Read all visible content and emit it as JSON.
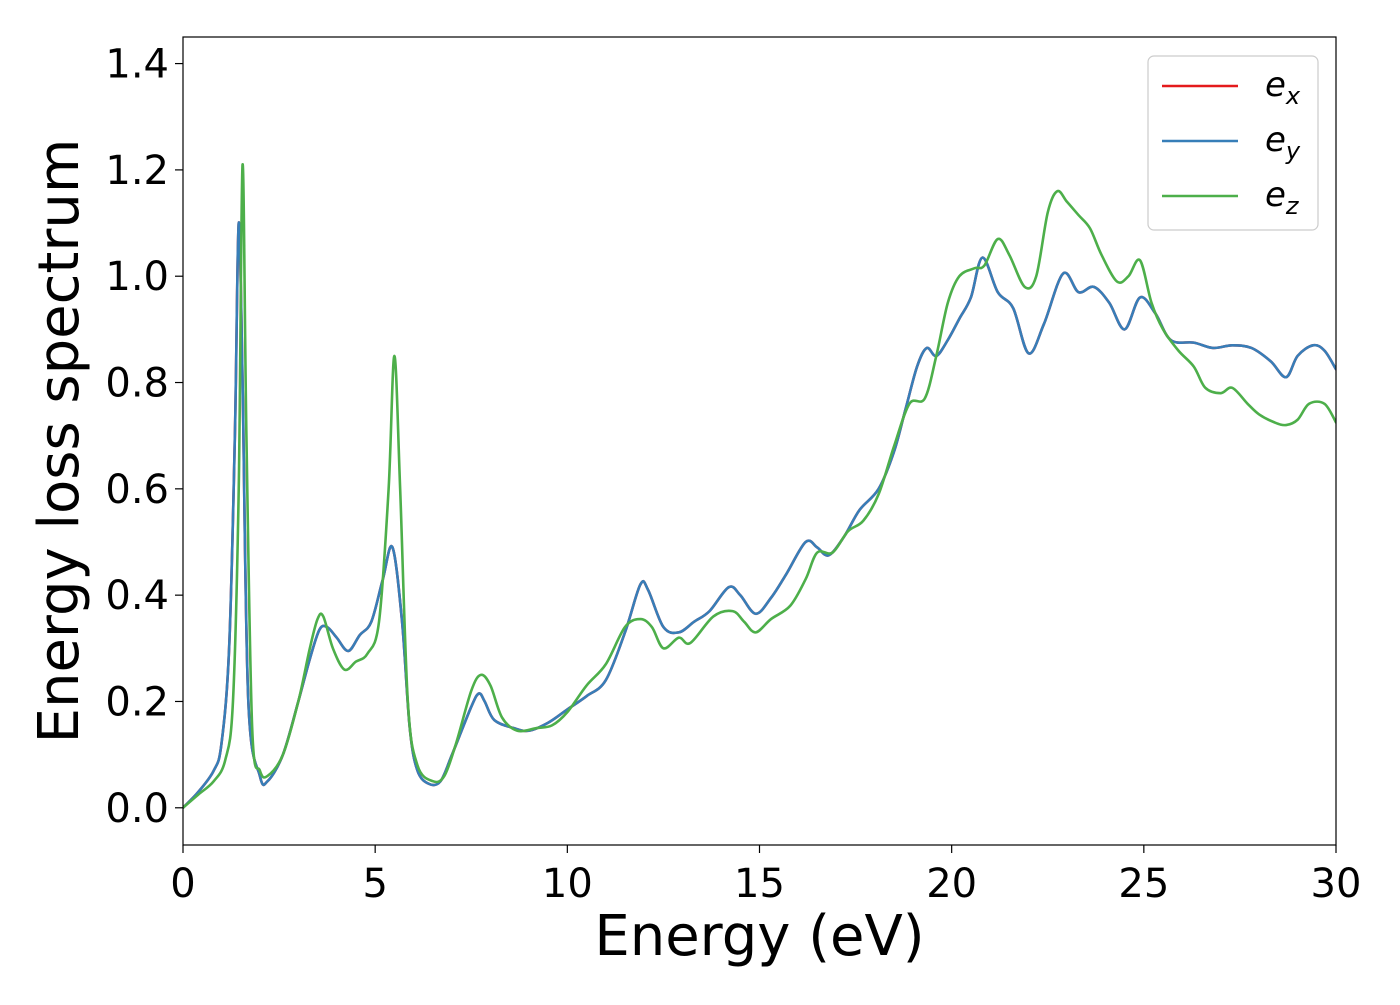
{
  "chart_data": {
    "type": "line",
    "xlabel": "Energy (eV)",
    "ylabel": "Energy loss spectrum",
    "xlim": [
      0,
      30
    ],
    "ylim": [
      -0.07,
      1.45
    ],
    "xticks": [
      0,
      5,
      10,
      15,
      20,
      25,
      30
    ],
    "yticks": [
      0.0,
      0.2,
      0.4,
      0.6,
      0.8,
      1.0,
      1.2,
      1.4
    ],
    "xtick_labels": [
      "0",
      "5",
      "10",
      "15",
      "20",
      "25",
      "30"
    ],
    "ytick_labels": [
      "0.0",
      "0.2",
      "0.4",
      "0.6",
      "0.8",
      "1.0",
      "1.2",
      "1.4"
    ],
    "grid": false,
    "legend_position": "top-right",
    "series": [
      {
        "name": "e_x",
        "label_base": "e",
        "label_sub": "x",
        "color": "#e41a1c",
        "points": [
          [
            0,
            0
          ],
          [
            0.4,
            0.03
          ],
          [
            0.8,
            0.07
          ],
          [
            1.0,
            0.12
          ],
          [
            1.2,
            0.3
          ],
          [
            1.35,
            0.7
          ],
          [
            1.45,
            1.1
          ],
          [
            1.55,
            0.8
          ],
          [
            1.7,
            0.2
          ],
          [
            2.0,
            0.06
          ],
          [
            2.2,
            0.05
          ],
          [
            2.6,
            0.1
          ],
          [
            3.0,
            0.2
          ],
          [
            3.3,
            0.28
          ],
          [
            3.55,
            0.335
          ],
          [
            3.75,
            0.34
          ],
          [
            4.0,
            0.32
          ],
          [
            4.3,
            0.295
          ],
          [
            4.6,
            0.325
          ],
          [
            4.9,
            0.35
          ],
          [
            5.2,
            0.43
          ],
          [
            5.45,
            0.49
          ],
          [
            5.7,
            0.35
          ],
          [
            5.9,
            0.15
          ],
          [
            6.1,
            0.07
          ],
          [
            6.4,
            0.045
          ],
          [
            6.7,
            0.05
          ],
          [
            7.0,
            0.1
          ],
          [
            7.5,
            0.19
          ],
          [
            7.7,
            0.215
          ],
          [
            7.85,
            0.2
          ],
          [
            8.1,
            0.165
          ],
          [
            8.6,
            0.15
          ],
          [
            9.0,
            0.145
          ],
          [
            9.5,
            0.16
          ],
          [
            10.0,
            0.185
          ],
          [
            10.5,
            0.21
          ],
          [
            11.0,
            0.24
          ],
          [
            11.5,
            0.33
          ],
          [
            11.9,
            0.42
          ],
          [
            12.1,
            0.41
          ],
          [
            12.5,
            0.34
          ],
          [
            12.9,
            0.33
          ],
          [
            13.3,
            0.35
          ],
          [
            13.7,
            0.37
          ],
          [
            14.2,
            0.415
          ],
          [
            14.5,
            0.4
          ],
          [
            14.9,
            0.365
          ],
          [
            15.3,
            0.395
          ],
          [
            15.7,
            0.44
          ],
          [
            16.2,
            0.5
          ],
          [
            16.5,
            0.49
          ],
          [
            16.8,
            0.475
          ],
          [
            17.2,
            0.51
          ],
          [
            17.6,
            0.56
          ],
          [
            18.1,
            0.6
          ],
          [
            18.5,
            0.67
          ],
          [
            18.8,
            0.75
          ],
          [
            19.1,
            0.83
          ],
          [
            19.35,
            0.865
          ],
          [
            19.6,
            0.85
          ],
          [
            19.9,
            0.88
          ],
          [
            20.2,
            0.92
          ],
          [
            20.5,
            0.96
          ],
          [
            20.8,
            1.035
          ],
          [
            21.2,
            0.97
          ],
          [
            21.6,
            0.94
          ],
          [
            22.0,
            0.855
          ],
          [
            22.4,
            0.91
          ],
          [
            22.9,
            1.005
          ],
          [
            23.3,
            0.97
          ],
          [
            23.7,
            0.98
          ],
          [
            24.1,
            0.95
          ],
          [
            24.5,
            0.9
          ],
          [
            24.9,
            0.96
          ],
          [
            25.3,
            0.93
          ],
          [
            25.7,
            0.88
          ],
          [
            26.3,
            0.875
          ],
          [
            26.8,
            0.865
          ],
          [
            27.3,
            0.87
          ],
          [
            27.8,
            0.865
          ],
          [
            28.3,
            0.84
          ],
          [
            28.7,
            0.81
          ],
          [
            29.0,
            0.85
          ],
          [
            29.4,
            0.87
          ],
          [
            29.7,
            0.86
          ],
          [
            30.0,
            0.825
          ]
        ]
      },
      {
        "name": "e_y",
        "label_base": "e",
        "label_sub": "y",
        "color": "#377eb8",
        "points": [
          [
            0,
            0
          ],
          [
            0.4,
            0.03
          ],
          [
            0.8,
            0.07
          ],
          [
            1.0,
            0.12
          ],
          [
            1.2,
            0.3
          ],
          [
            1.35,
            0.7
          ],
          [
            1.45,
            1.1
          ],
          [
            1.55,
            0.8
          ],
          [
            1.7,
            0.2
          ],
          [
            2.0,
            0.06
          ],
          [
            2.2,
            0.05
          ],
          [
            2.6,
            0.1
          ],
          [
            3.0,
            0.2
          ],
          [
            3.3,
            0.28
          ],
          [
            3.55,
            0.335
          ],
          [
            3.75,
            0.34
          ],
          [
            4.0,
            0.32
          ],
          [
            4.3,
            0.295
          ],
          [
            4.6,
            0.325
          ],
          [
            4.9,
            0.35
          ],
          [
            5.2,
            0.43
          ],
          [
            5.45,
            0.49
          ],
          [
            5.7,
            0.35
          ],
          [
            5.9,
            0.15
          ],
          [
            6.1,
            0.07
          ],
          [
            6.4,
            0.045
          ],
          [
            6.7,
            0.05
          ],
          [
            7.0,
            0.1
          ],
          [
            7.5,
            0.19
          ],
          [
            7.7,
            0.215
          ],
          [
            7.85,
            0.2
          ],
          [
            8.1,
            0.165
          ],
          [
            8.6,
            0.15
          ],
          [
            9.0,
            0.145
          ],
          [
            9.5,
            0.16
          ],
          [
            10.0,
            0.185
          ],
          [
            10.5,
            0.21
          ],
          [
            11.0,
            0.24
          ],
          [
            11.5,
            0.33
          ],
          [
            11.9,
            0.42
          ],
          [
            12.1,
            0.41
          ],
          [
            12.5,
            0.34
          ],
          [
            12.9,
            0.33
          ],
          [
            13.3,
            0.35
          ],
          [
            13.7,
            0.37
          ],
          [
            14.2,
            0.415
          ],
          [
            14.5,
            0.4
          ],
          [
            14.9,
            0.365
          ],
          [
            15.3,
            0.395
          ],
          [
            15.7,
            0.44
          ],
          [
            16.2,
            0.5
          ],
          [
            16.5,
            0.49
          ],
          [
            16.8,
            0.475
          ],
          [
            17.2,
            0.51
          ],
          [
            17.6,
            0.56
          ],
          [
            18.1,
            0.6
          ],
          [
            18.5,
            0.67
          ],
          [
            18.8,
            0.75
          ],
          [
            19.1,
            0.83
          ],
          [
            19.35,
            0.865
          ],
          [
            19.6,
            0.85
          ],
          [
            19.9,
            0.88
          ],
          [
            20.2,
            0.92
          ],
          [
            20.5,
            0.96
          ],
          [
            20.8,
            1.035
          ],
          [
            21.2,
            0.97
          ],
          [
            21.6,
            0.94
          ],
          [
            22.0,
            0.855
          ],
          [
            22.4,
            0.91
          ],
          [
            22.9,
            1.005
          ],
          [
            23.3,
            0.97
          ],
          [
            23.7,
            0.98
          ],
          [
            24.1,
            0.95
          ],
          [
            24.5,
            0.9
          ],
          [
            24.9,
            0.96
          ],
          [
            25.3,
            0.93
          ],
          [
            25.7,
            0.88
          ],
          [
            26.3,
            0.875
          ],
          [
            26.8,
            0.865
          ],
          [
            27.3,
            0.87
          ],
          [
            27.8,
            0.865
          ],
          [
            28.3,
            0.84
          ],
          [
            28.7,
            0.81
          ],
          [
            29.0,
            0.85
          ],
          [
            29.4,
            0.87
          ],
          [
            29.7,
            0.86
          ],
          [
            30.0,
            0.825
          ]
        ]
      },
      {
        "name": "e_z",
        "label_base": "e",
        "label_sub": "z",
        "color": "#4daf4a",
        "points": [
          [
            0,
            0
          ],
          [
            0.4,
            0.025
          ],
          [
            0.8,
            0.05
          ],
          [
            1.1,
            0.09
          ],
          [
            1.3,
            0.2
          ],
          [
            1.45,
            0.6
          ],
          [
            1.55,
            1.21
          ],
          [
            1.65,
            0.7
          ],
          [
            1.8,
            0.15
          ],
          [
            2.0,
            0.07
          ],
          [
            2.2,
            0.06
          ],
          [
            2.6,
            0.1
          ],
          [
            3.0,
            0.2
          ],
          [
            3.3,
            0.3
          ],
          [
            3.5,
            0.355
          ],
          [
            3.65,
            0.36
          ],
          [
            3.9,
            0.3
          ],
          [
            4.2,
            0.26
          ],
          [
            4.5,
            0.275
          ],
          [
            4.8,
            0.29
          ],
          [
            5.1,
            0.35
          ],
          [
            5.35,
            0.6
          ],
          [
            5.5,
            0.85
          ],
          [
            5.65,
            0.6
          ],
          [
            5.85,
            0.2
          ],
          [
            6.1,
            0.08
          ],
          [
            6.5,
            0.05
          ],
          [
            6.8,
            0.06
          ],
          [
            7.1,
            0.12
          ],
          [
            7.5,
            0.22
          ],
          [
            7.75,
            0.25
          ],
          [
            8.0,
            0.23
          ],
          [
            8.3,
            0.17
          ],
          [
            8.7,
            0.145
          ],
          [
            9.2,
            0.15
          ],
          [
            9.6,
            0.155
          ],
          [
            10.0,
            0.18
          ],
          [
            10.5,
            0.23
          ],
          [
            11.0,
            0.27
          ],
          [
            11.5,
            0.34
          ],
          [
            11.9,
            0.355
          ],
          [
            12.2,
            0.34
          ],
          [
            12.5,
            0.3
          ],
          [
            12.9,
            0.32
          ],
          [
            13.2,
            0.31
          ],
          [
            13.8,
            0.36
          ],
          [
            14.3,
            0.37
          ],
          [
            14.6,
            0.35
          ],
          [
            14.9,
            0.33
          ],
          [
            15.3,
            0.355
          ],
          [
            15.8,
            0.38
          ],
          [
            16.2,
            0.43
          ],
          [
            16.5,
            0.48
          ],
          [
            16.9,
            0.48
          ],
          [
            17.3,
            0.52
          ],
          [
            17.7,
            0.54
          ],
          [
            18.1,
            0.59
          ],
          [
            18.5,
            0.68
          ],
          [
            18.9,
            0.76
          ],
          [
            19.3,
            0.77
          ],
          [
            19.6,
            0.85
          ],
          [
            19.9,
            0.95
          ],
          [
            20.2,
            1.0
          ],
          [
            20.6,
            1.015
          ],
          [
            20.85,
            1.02
          ],
          [
            21.2,
            1.07
          ],
          [
            21.5,
            1.04
          ],
          [
            21.9,
            0.98
          ],
          [
            22.2,
            1.0
          ],
          [
            22.5,
            1.12
          ],
          [
            22.75,
            1.16
          ],
          [
            23.0,
            1.14
          ],
          [
            23.3,
            1.115
          ],
          [
            23.6,
            1.09
          ],
          [
            23.9,
            1.04
          ],
          [
            24.3,
            0.99
          ],
          [
            24.6,
            1.0
          ],
          [
            24.9,
            1.03
          ],
          [
            25.2,
            0.95
          ],
          [
            25.5,
            0.9
          ],
          [
            25.9,
            0.86
          ],
          [
            26.3,
            0.83
          ],
          [
            26.6,
            0.79
          ],
          [
            27.0,
            0.78
          ],
          [
            27.3,
            0.79
          ],
          [
            27.7,
            0.76
          ],
          [
            28.0,
            0.74
          ],
          [
            28.4,
            0.725
          ],
          [
            28.7,
            0.72
          ],
          [
            29.0,
            0.73
          ],
          [
            29.3,
            0.76
          ],
          [
            29.7,
            0.76
          ],
          [
            30.0,
            0.725
          ]
        ]
      }
    ]
  }
}
